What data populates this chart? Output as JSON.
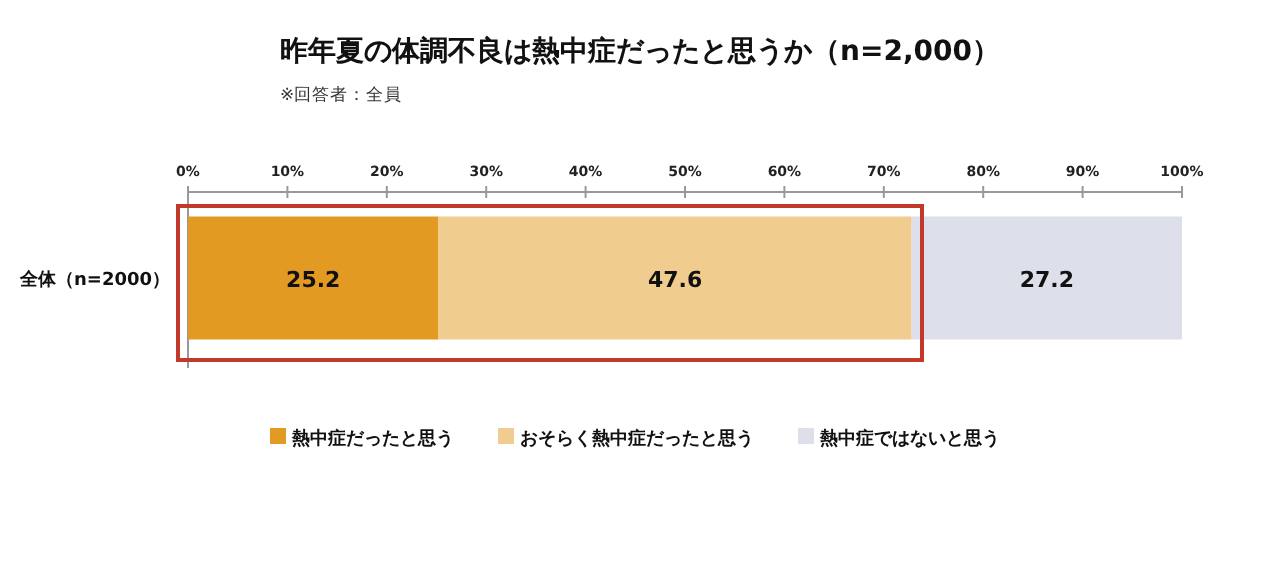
{
  "chart_data": {
    "type": "bar",
    "orientation": "horizontal",
    "stacked": true,
    "data_labels": true,
    "legend": "bottom",
    "title": "昨年夏の体調不良は熱中症だったと思うか（n=2,000）",
    "subtitle": "※回答者：全員",
    "categories": [
      "全体（n=2000）"
    ],
    "xlim": [
      0,
      100
    ],
    "xticks": [
      {
        "value": 0,
        "label": "0%"
      },
      {
        "value": 10,
        "label": "10%"
      },
      {
        "value": 20,
        "label": "20%"
      },
      {
        "value": 30,
        "label": "30%"
      },
      {
        "value": 40,
        "label": "40%"
      },
      {
        "value": 50,
        "label": "50%"
      },
      {
        "value": 60,
        "label": "60%"
      },
      {
        "value": 70,
        "label": "70%"
      },
      {
        "value": 80,
        "label": "80%"
      },
      {
        "value": 90,
        "label": "90%"
      },
      {
        "value": 100,
        "label": "100%"
      }
    ],
    "series": [
      {
        "name": "熱中症だったと思う",
        "color": "#e39a22",
        "values": [
          25.2
        ]
      },
      {
        "name": "おそらく熱中症だったと思う",
        "color": "#f0cc8e",
        "values": [
          47.6
        ]
      },
      {
        "name": "熱中症ではないと思う",
        "color": "#dddfea",
        "values": [
          27.2
        ]
      }
    ]
  }
}
